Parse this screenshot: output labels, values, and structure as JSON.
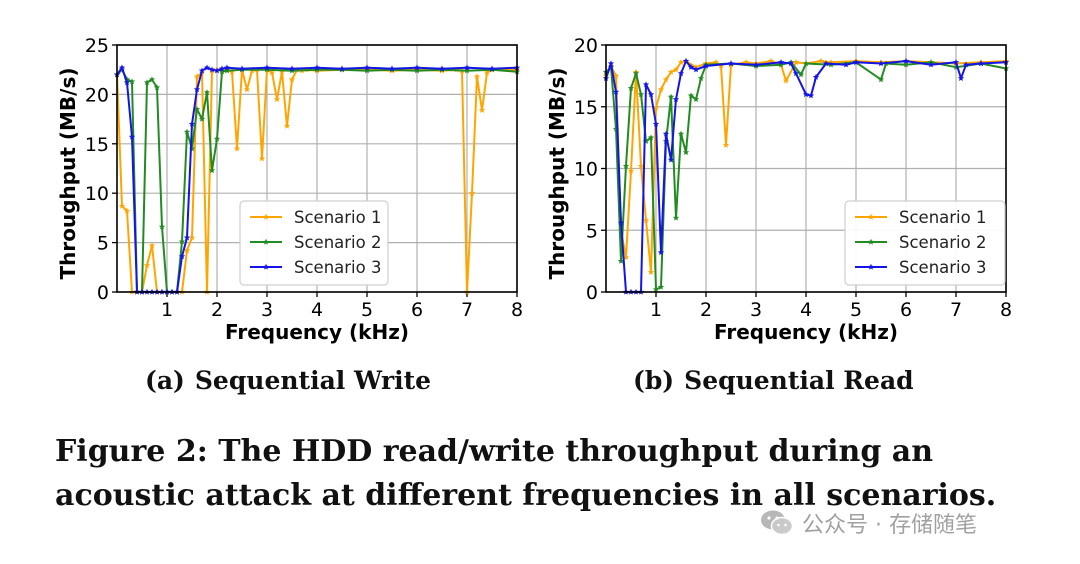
{
  "colors": {
    "scenario1": "#ffa500",
    "scenario2": "#228b22",
    "scenario3": "#1414e6"
  },
  "chart_data": [
    {
      "id": "a",
      "type": "line",
      "title": "",
      "xlabel": "Frequency (kHz)",
      "ylabel": "Throughput (MB/s)",
      "xlim": [
        0,
        8
      ],
      "ylim": [
        0,
        25
      ],
      "xticks": [
        "1",
        "2",
        "3",
        "4",
        "5",
        "6",
        "7",
        "8"
      ],
      "yticks": [
        "0",
        "5",
        "10",
        "15",
        "20",
        "25"
      ],
      "grid": true,
      "legend_position": "center-right",
      "series": [
        {
          "name": "Scenario 1",
          "color": "#ffa500",
          "points": [
            [
              0,
              22
            ],
            [
              0.1,
              8.7
            ],
            [
              0.2,
              8.2
            ],
            [
              0.3,
              0
            ],
            [
              0.4,
              0
            ],
            [
              0.5,
              0
            ],
            [
              0.6,
              2.7
            ],
            [
              0.7,
              4.7
            ],
            [
              0.8,
              0
            ],
            [
              0.9,
              0
            ],
            [
              1.0,
              0
            ],
            [
              1.1,
              0
            ],
            [
              1.2,
              0
            ],
            [
              1.3,
              0
            ],
            [
              1.4,
              4.2
            ],
            [
              1.5,
              5.5
            ],
            [
              1.6,
              21.8
            ],
            [
              1.7,
              22.2
            ],
            [
              1.8,
              0
            ],
            [
              1.9,
              22.4
            ],
            [
              2.0,
              22.5
            ],
            [
              2.1,
              22.4
            ],
            [
              2.2,
              22.5
            ],
            [
              2.3,
              22.3
            ],
            [
              2.4,
              14.5
            ],
            [
              2.5,
              22.5
            ],
            [
              2.6,
              20.5
            ],
            [
              2.7,
              22.4
            ],
            [
              2.8,
              22.5
            ],
            [
              2.9,
              13.5
            ],
            [
              3.0,
              22.5
            ],
            [
              3.1,
              22.2
            ],
            [
              3.2,
              19.5
            ],
            [
              3.3,
              22.3
            ],
            [
              3.4,
              16.8
            ],
            [
              3.5,
              21.5
            ],
            [
              3.6,
              22.5
            ],
            [
              3.7,
              22.4
            ],
            [
              3.8,
              22.5
            ],
            [
              4.0,
              22.4
            ],
            [
              4.5,
              22.5
            ],
            [
              5.0,
              22.5
            ],
            [
              5.5,
              22.4
            ],
            [
              6.0,
              22.5
            ],
            [
              6.5,
              22.4
            ],
            [
              6.8,
              22.5
            ],
            [
              6.9,
              22.4
            ],
            [
              7.0,
              0
            ],
            [
              7.1,
              10
            ],
            [
              7.2,
              21.8
            ],
            [
              7.3,
              18.4
            ],
            [
              7.4,
              22.2
            ],
            [
              7.5,
              22.5
            ],
            [
              8.0,
              22.5
            ]
          ]
        },
        {
          "name": "Scenario 2",
          "color": "#228b22",
          "points": [
            [
              0,
              22
            ],
            [
              0.1,
              22.5
            ],
            [
              0.2,
              21.5
            ],
            [
              0.3,
              21.3
            ],
            [
              0.4,
              0
            ],
            [
              0.5,
              0
            ],
            [
              0.6,
              21.2
            ],
            [
              0.7,
              21.5
            ],
            [
              0.8,
              20.7
            ],
            [
              0.9,
              6.6
            ],
            [
              1.0,
              0
            ],
            [
              1.1,
              0
            ],
            [
              1.2,
              0
            ],
            [
              1.3,
              5.1
            ],
            [
              1.4,
              16.2
            ],
            [
              1.5,
              14.5
            ],
            [
              1.6,
              18.5
            ],
            [
              1.7,
              17.5
            ],
            [
              1.8,
              20.2
            ],
            [
              1.9,
              12.3
            ],
            [
              2.0,
              15.5
            ],
            [
              2.1,
              22.3
            ],
            [
              2.2,
              22.4
            ],
            [
              2.5,
              22.5
            ],
            [
              3.0,
              22.5
            ],
            [
              3.5,
              22.4
            ],
            [
              4.0,
              22.5
            ],
            [
              4.5,
              22.5
            ],
            [
              5.0,
              22.4
            ],
            [
              5.5,
              22.5
            ],
            [
              6.0,
              22.4
            ],
            [
              6.5,
              22.5
            ],
            [
              7.0,
              22.4
            ],
            [
              7.5,
              22.5
            ],
            [
              8.0,
              22.3
            ]
          ]
        },
        {
          "name": "Scenario 3",
          "color": "#1414e6",
          "points": [
            [
              0,
              22
            ],
            [
              0.1,
              22.7
            ],
            [
              0.2,
              21.2
            ],
            [
              0.3,
              15.7
            ],
            [
              0.4,
              0
            ],
            [
              0.5,
              0
            ],
            [
              0.6,
              0
            ],
            [
              0.7,
              0
            ],
            [
              0.8,
              0
            ],
            [
              0.9,
              0
            ],
            [
              1.0,
              0
            ],
            [
              1.1,
              0
            ],
            [
              1.2,
              0
            ],
            [
              1.3,
              3.6
            ],
            [
              1.4,
              5.5
            ],
            [
              1.5,
              17.0
            ],
            [
              1.6,
              20.5
            ],
            [
              1.7,
              22.4
            ],
            [
              1.8,
              22.7
            ],
            [
              1.9,
              22.5
            ],
            [
              2.0,
              22.4
            ],
            [
              2.1,
              22.6
            ],
            [
              2.2,
              22.7
            ],
            [
              2.5,
              22.6
            ],
            [
              3.0,
              22.7
            ],
            [
              3.5,
              22.6
            ],
            [
              4.0,
              22.7
            ],
            [
              4.5,
              22.6
            ],
            [
              5.0,
              22.7
            ],
            [
              5.5,
              22.6
            ],
            [
              6.0,
              22.7
            ],
            [
              6.5,
              22.6
            ],
            [
              7.0,
              22.7
            ],
            [
              7.5,
              22.6
            ],
            [
              8.0,
              22.7
            ]
          ]
        }
      ]
    },
    {
      "id": "b",
      "type": "line",
      "title": "",
      "xlabel": "Frequency (kHz)",
      "ylabel": "Throughput (MB/s)",
      "xlim": [
        0,
        8
      ],
      "ylim": [
        0,
        20
      ],
      "xticks": [
        "1",
        "2",
        "3",
        "4",
        "5",
        "6",
        "7",
        "8"
      ],
      "yticks": [
        "0",
        "5",
        "10",
        "15",
        "20"
      ],
      "grid": true,
      "legend_position": "center-right",
      "series": [
        {
          "name": "Scenario 1",
          "color": "#ffa500",
          "points": [
            [
              0,
              17.5
            ],
            [
              0.1,
              18.3
            ],
            [
              0.2,
              17.5
            ],
            [
              0.3,
              5
            ],
            [
              0.4,
              2.8
            ],
            [
              0.5,
              9.8
            ],
            [
              0.6,
              17.8
            ],
            [
              0.7,
              10.2
            ],
            [
              0.8,
              5.8
            ],
            [
              0.9,
              1.6
            ],
            [
              1.0,
              14.9
            ],
            [
              1.1,
              16.4
            ],
            [
              1.2,
              17.2
            ],
            [
              1.3,
              17.8
            ],
            [
              1.4,
              18.0
            ],
            [
              1.5,
              18.6
            ],
            [
              1.6,
              18.7
            ],
            [
              1.8,
              18.2
            ],
            [
              2.0,
              18.5
            ],
            [
              2.2,
              18.6
            ],
            [
              2.3,
              18.3
            ],
            [
              2.4,
              11.9
            ],
            [
              2.5,
              18.4
            ],
            [
              2.8,
              18.6
            ],
            [
              3.0,
              18.5
            ],
            [
              3.3,
              18.7
            ],
            [
              3.5,
              18.4
            ],
            [
              3.6,
              17.1
            ],
            [
              3.8,
              18.6
            ],
            [
              4.0,
              18.5
            ],
            [
              4.3,
              18.7
            ],
            [
              4.5,
              18.6
            ],
            [
              5.0,
              18.7
            ],
            [
              5.5,
              18.6
            ],
            [
              6.0,
              18.7
            ],
            [
              6.5,
              18.6
            ],
            [
              7.0,
              18.5
            ],
            [
              7.5,
              18.6
            ],
            [
              8.0,
              18.7
            ]
          ]
        },
        {
          "name": "Scenario 2",
          "color": "#228b22",
          "points": [
            [
              0,
              17.8
            ],
            [
              0.1,
              18.2
            ],
            [
              0.2,
              13.2
            ],
            [
              0.3,
              2.5
            ],
            [
              0.4,
              10.2
            ],
            [
              0.5,
              16.5
            ],
            [
              0.6,
              17.7
            ],
            [
              0.7,
              16.0
            ],
            [
              0.8,
              12.2
            ],
            [
              0.9,
              12.5
            ],
            [
              1.0,
              0.2
            ],
            [
              1.1,
              0.4
            ],
            [
              1.2,
              12.2
            ],
            [
              1.3,
              15.8
            ],
            [
              1.4,
              6.0
            ],
            [
              1.5,
              12.8
            ],
            [
              1.6,
              11.3
            ],
            [
              1.7,
              15.9
            ],
            [
              1.8,
              15.6
            ],
            [
              1.9,
              17.3
            ],
            [
              2.0,
              18.4
            ],
            [
              2.5,
              18.5
            ],
            [
              3.0,
              18.3
            ],
            [
              3.5,
              18.4
            ],
            [
              3.7,
              18.6
            ],
            [
              3.9,
              17.6
            ],
            [
              4.0,
              18.5
            ],
            [
              4.5,
              18.4
            ],
            [
              5.0,
              18.6
            ],
            [
              5.5,
              17.2
            ],
            [
              5.6,
              18.5
            ],
            [
              6.0,
              18.4
            ],
            [
              6.5,
              18.6
            ],
            [
              7.0,
              18.2
            ],
            [
              7.5,
              18.5
            ],
            [
              8.0,
              18.1
            ]
          ]
        },
        {
          "name": "Scenario 3",
          "color": "#1414e6",
          "points": [
            [
              0,
              17.3
            ],
            [
              0.1,
              18.5
            ],
            [
              0.2,
              16.2
            ],
            [
              0.3,
              5.6
            ],
            [
              0.4,
              0
            ],
            [
              0.5,
              0
            ],
            [
              0.6,
              0
            ],
            [
              0.7,
              0
            ],
            [
              0.8,
              16.8
            ],
            [
              0.9,
              16.0
            ],
            [
              1.0,
              13.6
            ],
            [
              1.1,
              3.2
            ],
            [
              1.2,
              12.8
            ],
            [
              1.3,
              10.7
            ],
            [
              1.4,
              15.6
            ],
            [
              1.5,
              17.7
            ],
            [
              1.6,
              18.7
            ],
            [
              1.7,
              18.2
            ],
            [
              1.8,
              18.0
            ],
            [
              2.0,
              18.3
            ],
            [
              2.5,
              18.5
            ],
            [
              3.0,
              18.4
            ],
            [
              3.5,
              18.6
            ],
            [
              3.7,
              18.5
            ],
            [
              3.8,
              17.7
            ],
            [
              4.0,
              16.0
            ],
            [
              4.1,
              15.9
            ],
            [
              4.2,
              17.4
            ],
            [
              4.4,
              18.5
            ],
            [
              4.8,
              18.4
            ],
            [
              5.0,
              18.6
            ],
            [
              5.5,
              18.5
            ],
            [
              6.0,
              18.7
            ],
            [
              6.5,
              18.4
            ],
            [
              7.0,
              18.6
            ],
            [
              7.1,
              17.3
            ],
            [
              7.2,
              18.4
            ],
            [
              7.5,
              18.5
            ],
            [
              8.0,
              18.6
            ]
          ]
        }
      ]
    }
  ],
  "subcaptions": {
    "a": {
      "label": "(a)",
      "text": "Sequential Write"
    },
    "b": {
      "label": "(b)",
      "text": "Sequential Read"
    }
  },
  "figure_caption": "Figure 2: The HDD read/write throughput during an acoustic attack at different frequencies in all scenarios.",
  "watermark": {
    "text": "公众号 · 存储随笔",
    "icon": "wechat-icon"
  }
}
